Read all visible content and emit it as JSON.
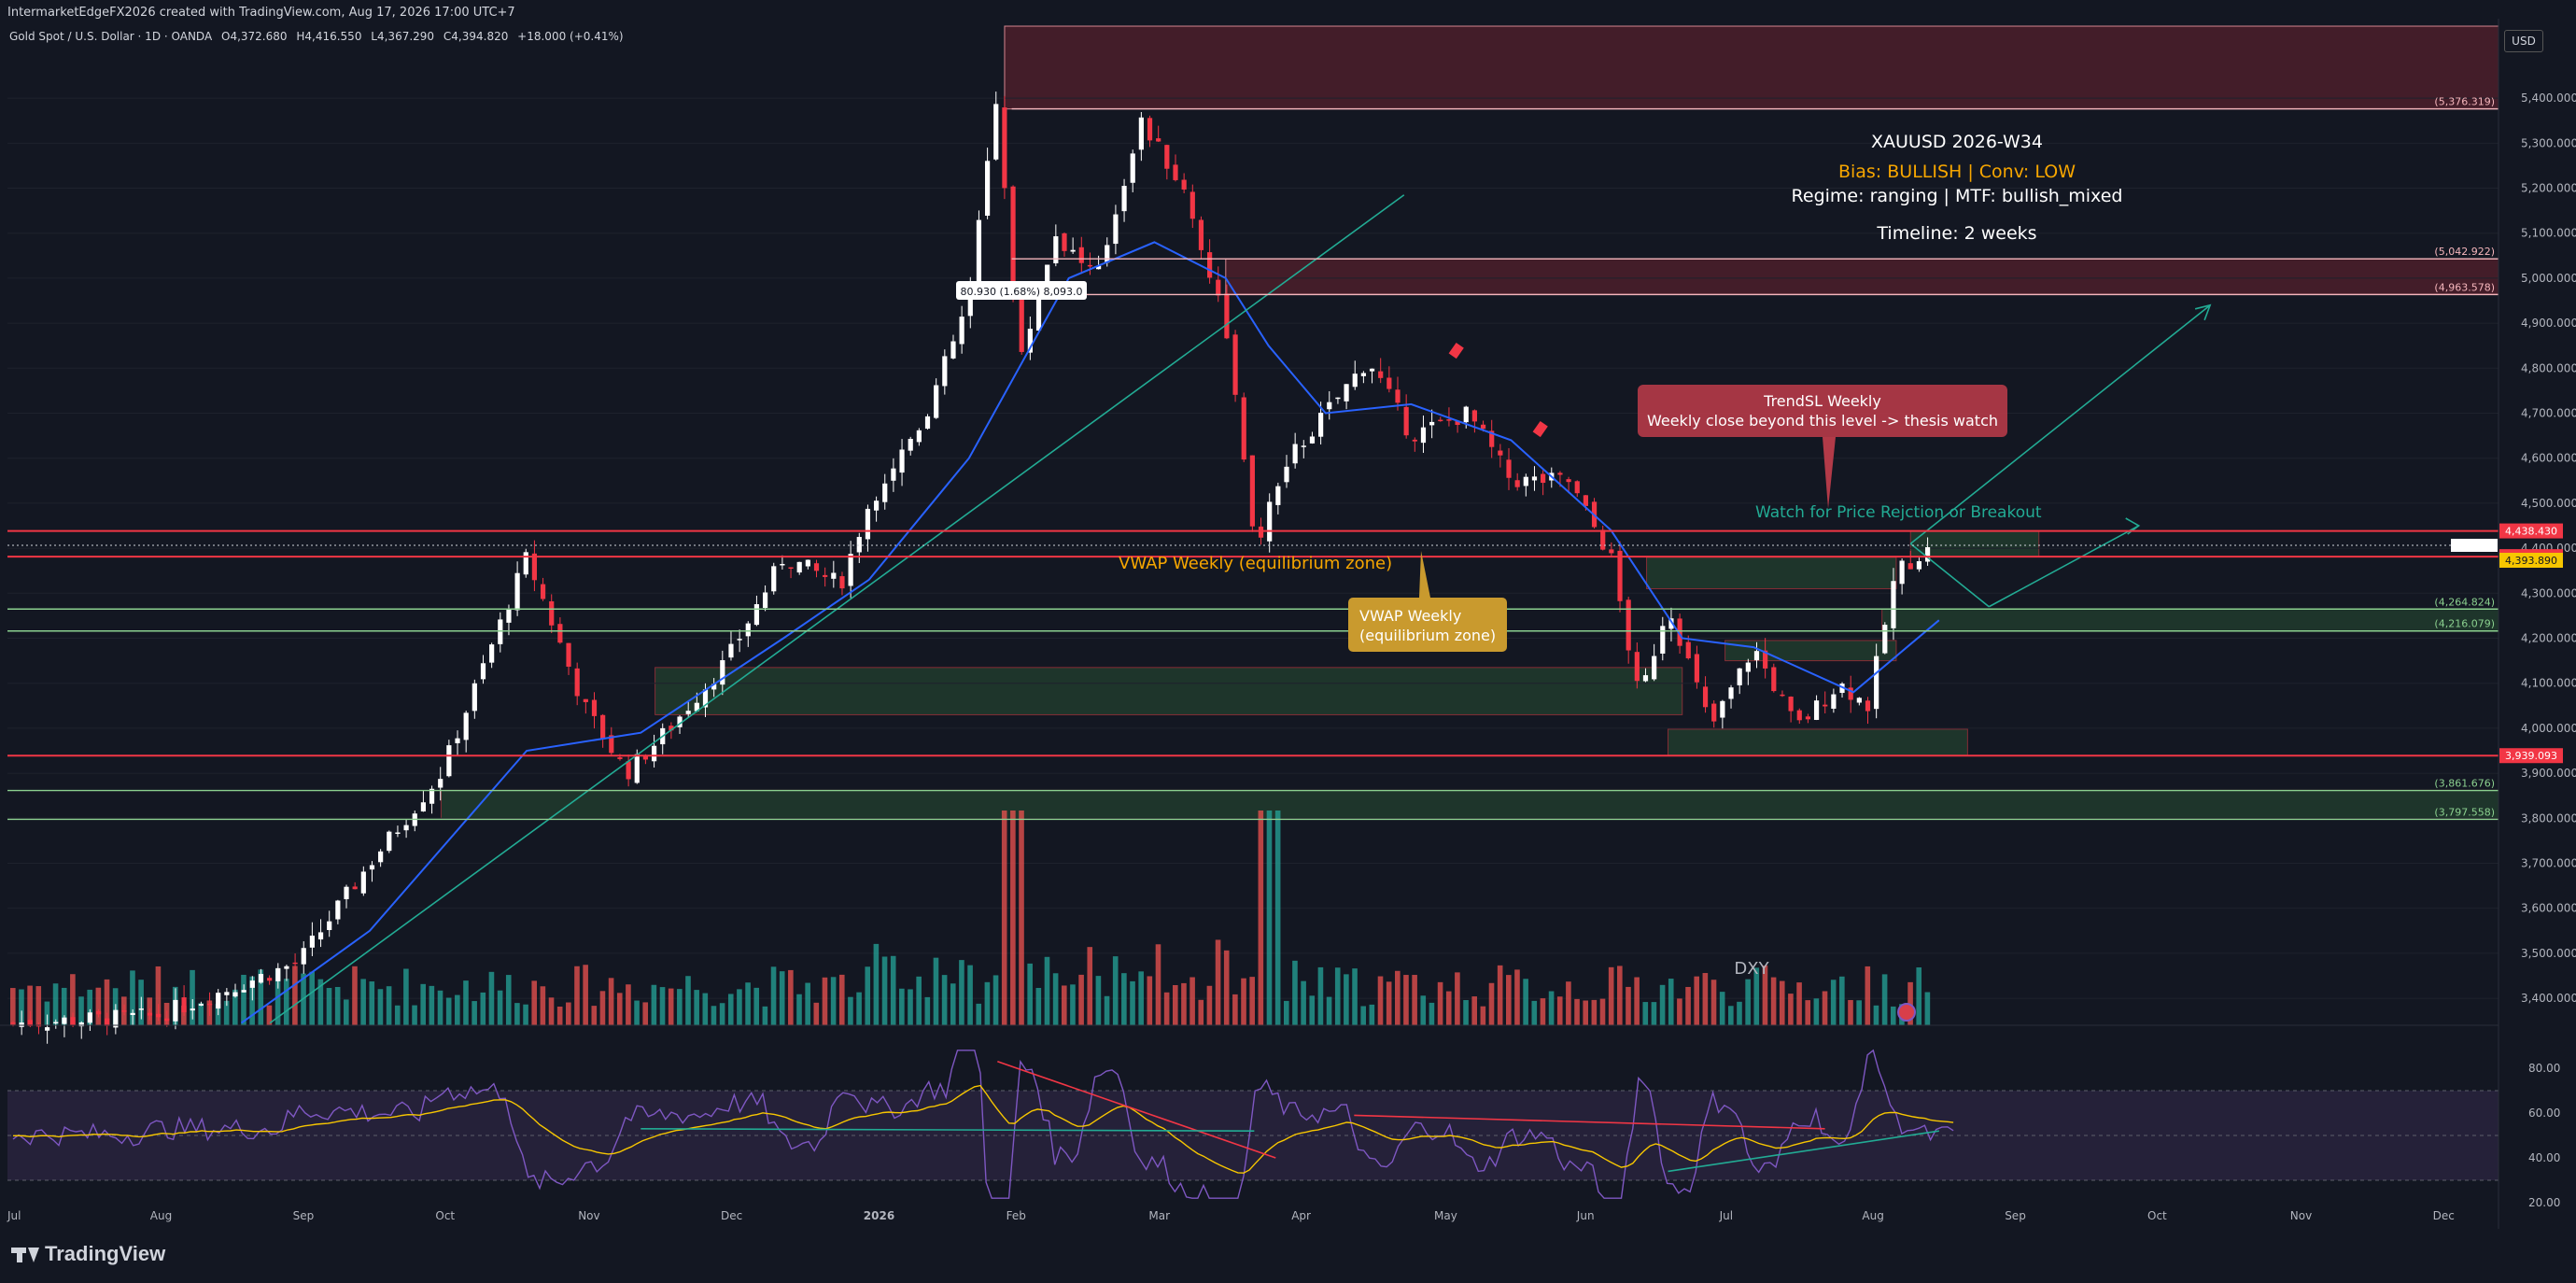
{
  "header": {
    "credit": "IntermarketEdgeFX2026 created with TradingView.com, Aug 17, 2026 17:00 UTC+7",
    "symbol": "Gold Spot / U.S. Dollar · 1D · OANDA",
    "ohlc_o": "O4,372.680",
    "ohlc_h": "H4,416.550",
    "ohlc_l": "L4,367.290",
    "ohlc_c": "C4,394.820",
    "change": "+18.000 (+0.41%)",
    "currency": "USD"
  },
  "footer": {
    "logo": "TradingView"
  },
  "colors": {
    "bg": "#131722",
    "up": "#ffffff",
    "down": "#f23645",
    "vol_up": "#26a69a",
    "vol_down": "#ef5350",
    "red_line": "#f23645",
    "teal": "#22ab94",
    "blue": "#2962ff",
    "orange": "#f7a600",
    "rsi_fill": "#2a2440"
  },
  "chart_data": {
    "type": "line",
    "title": "XAUUSD 2026-W34",
    "xlabel": "",
    "ylabel": "",
    "ylim": [
      3340,
      5560
    ],
    "x_ticks": [
      "Jul",
      "Aug",
      "Sep",
      "Oct",
      "Nov",
      "Dec",
      "2026",
      "Feb",
      "Mar",
      "Apr",
      "May",
      "Jun",
      "Jul",
      "Aug",
      "Sep",
      "Oct",
      "Nov",
      "Dec"
    ],
    "y_ticks": [
      "5,400.000",
      "5,300.000",
      "5,200.000",
      "5,100.000",
      "5,000.000",
      "4,900.000",
      "4,800.000",
      "4,700.000",
      "4,600.000",
      "4,500.000",
      "4,400.000",
      "4,300.000",
      "4,200.000",
      "4,100.000",
      "4,000.000",
      "3,900.000",
      "3,800.000",
      "3,700.000",
      "3,600.000",
      "3,500.000",
      "3,400.000"
    ],
    "rsi_ticks": [
      "80.00",
      "60.00",
      "40.00",
      "20.00"
    ],
    "price_path": [
      {
        "m": 0,
        "v": 3345
      },
      {
        "m": 1.0,
        "v": 3360
      },
      {
        "m": 2.0,
        "v": 3480
      },
      {
        "m": 2.5,
        "v": 3700
      },
      {
        "m": 3.0,
        "v": 3900
      },
      {
        "m": 3.6,
        "v": 4380
      },
      {
        "m": 4.0,
        "v": 4050
      },
      {
        "m": 4.3,
        "v": 3900
      },
      {
        "m": 4.6,
        "v": 4000
      },
      {
        "m": 5.0,
        "v": 4150
      },
      {
        "m": 5.4,
        "v": 4380
      },
      {
        "m": 5.8,
        "v": 4320
      },
      {
        "m": 6.0,
        "v": 4500
      },
      {
        "m": 6.4,
        "v": 4700
      },
      {
        "m": 6.7,
        "v": 4950
      },
      {
        "m": 6.9,
        "v": 5420
      },
      {
        "m": 7.05,
        "v": 4800
      },
      {
        "m": 7.3,
        "v": 5100
      },
      {
        "m": 7.6,
        "v": 5000
      },
      {
        "m": 7.9,
        "v": 5350
      },
      {
        "m": 8.2,
        "v": 5200
      },
      {
        "m": 8.5,
        "v": 4900
      },
      {
        "m": 8.7,
        "v": 4400
      },
      {
        "m": 8.95,
        "v": 4600
      },
      {
        "m": 9.2,
        "v": 4700
      },
      {
        "m": 9.5,
        "v": 4820
      },
      {
        "m": 9.8,
        "v": 4650
      },
      {
        "m": 10.2,
        "v": 4700
      },
      {
        "m": 10.5,
        "v": 4550
      },
      {
        "m": 10.9,
        "v": 4550
      },
      {
        "m": 11.2,
        "v": 4380
      },
      {
        "m": 11.4,
        "v": 4060
      },
      {
        "m": 11.6,
        "v": 4280
      },
      {
        "m": 11.9,
        "v": 4000
      },
      {
        "m": 12.2,
        "v": 4180
      },
      {
        "m": 12.5,
        "v": 4000
      },
      {
        "m": 12.8,
        "v": 4100
      },
      {
        "m": 13.0,
        "v": 4050
      },
      {
        "m": 13.2,
        "v": 4350
      },
      {
        "m": 13.4,
        "v": 4394
      }
    ],
    "moving_averages": [
      {
        "color": "blue",
        "points": [
          {
            "m": 1.6,
            "v": 3345
          },
          {
            "m": 2.5,
            "v": 3550
          },
          {
            "m": 3.6,
            "v": 3950
          },
          {
            "m": 4.4,
            "v": 3990
          },
          {
            "m": 5.4,
            "v": 4200
          },
          {
            "m": 6.0,
            "v": 4330
          },
          {
            "m": 6.7,
            "v": 4600
          },
          {
            "m": 7.4,
            "v": 5000
          },
          {
            "m": 8.0,
            "v": 5080
          },
          {
            "m": 8.5,
            "v": 5000
          },
          {
            "m": 8.8,
            "v": 4850
          },
          {
            "m": 9.2,
            "v": 4700
          },
          {
            "m": 9.8,
            "v": 4720
          },
          {
            "m": 10.5,
            "v": 4640
          },
          {
            "m": 11.2,
            "v": 4440
          },
          {
            "m": 11.7,
            "v": 4200
          },
          {
            "m": 12.2,
            "v": 4180
          },
          {
            "m": 12.9,
            "v": 4080
          },
          {
            "m": 13.5,
            "v": 4240
          }
        ]
      },
      {
        "color": "red",
        "points": [
          {
            "m": 2.0,
            "v": 3345
          },
          {
            "m": 3.0,
            "v": 3600
          },
          {
            "m": 3.7,
            "v": 3800
          },
          {
            "m": 4.5,
            "v": 3880
          },
          {
            "m": 5.4,
            "v": 4000
          },
          {
            "m": 6.2,
            "v": 4200
          },
          {
            "m": 6.9,
            "v": 4330
          },
          {
            "m": 7.3,
            "v": 4500
          },
          {
            "m": 8.0,
            "v": 4650
          },
          {
            "m": 8.6,
            "v": 4780
          },
          {
            "m": 9.1,
            "v": 4720
          },
          {
            "m": 9.8,
            "v": 4700
          },
          {
            "m": 10.5,
            "v": 4660
          },
          {
            "m": 11.0,
            "v": 4600
          },
          {
            "m": 11.6,
            "v": 4450
          },
          {
            "m": 12.3,
            "v": 4330
          },
          {
            "m": 13.0,
            "v": 4260
          },
          {
            "m": 13.5,
            "v": 4270
          }
        ]
      }
    ],
    "trendlines": [
      {
        "color": "teal",
        "from": {
          "m": 1.8,
          "v": 3345
        },
        "to": {
          "m": 9.75,
          "v": 5185
        }
      },
      {
        "color": "red",
        "from": {
          "m": 7.0,
          "v": 4800
        },
        "to": {
          "m": 7.9,
          "v": 5430
        }
      },
      {
        "color": "red",
        "from": {
          "m": 7.9,
          "v": 5430
        },
        "to": {
          "m": 13.2,
          "v": 4380
        }
      },
      {
        "color": "teal",
        "from": {
          "m": 13.3,
          "v": 4410
        },
        "to": {
          "m": 15.4,
          "v": 4940
        }
      },
      {
        "color": "teal",
        "from": {
          "m": 13.3,
          "v": 4410
        },
        "to": {
          "m": 13.85,
          "v": 4270
        }
      },
      {
        "color": "teal",
        "from": {
          "m": 13.85,
          "v": 4270
        },
        "to": {
          "m": 14.9,
          "v": 4450
        }
      }
    ],
    "horizontal_lines": [
      {
        "v": 5376.319,
        "label": "(5,376.319)"
      },
      {
        "v": 5042.922,
        "label": "(5,042.922)"
      },
      {
        "v": 4963.578,
        "label": "(4,963.578)"
      },
      {
        "v": 4438.43,
        "label": "4,438.430",
        "solid_tag": true
      },
      {
        "v": 4381.32,
        "label": "4,381.320",
        "solid_tag": true
      },
      {
        "v": 4264.824,
        "label": "(4,264.824)",
        "green": true
      },
      {
        "v": 4216.079,
        "label": "(4,216.079)",
        "green": true
      },
      {
        "v": 3939.093,
        "label": "3,939.093",
        "solid_tag": true
      },
      {
        "v": 3861.676,
        "label": "(3,861.676)",
        "green": true
      },
      {
        "v": 3797.558,
        "label": "(3,797.558)",
        "green": true
      }
    ],
    "zones": [
      {
        "type": "supply",
        "from_m": 6.95,
        "to_m": 17.7,
        "v1": 5560,
        "v2": 5376
      },
      {
        "type": "supply",
        "from_m": 8.5,
        "to_m": 17.7,
        "v1": 5043,
        "v2": 4964
      },
      {
        "type": "demand",
        "from_m": 11.45,
        "to_m": 13.2,
        "v1": 4380,
        "v2": 4310
      },
      {
        "type": "demand",
        "from_m": 4.5,
        "to_m": 11.7,
        "v1": 4135,
        "v2": 4030
      },
      {
        "type": "demand",
        "from_m": 11.6,
        "to_m": 13.7,
        "v1": 3998,
        "v2": 3939
      },
      {
        "type": "demand",
        "from_m": 12.0,
        "to_m": 13.2,
        "v1": 4195,
        "v2": 4150
      },
      {
        "type": "demand",
        "from_m": 13.1,
        "to_m": 17.7,
        "v1": 4265,
        "v2": 4216
      },
      {
        "type": "demand",
        "from_m": 3.0,
        "to_m": 17.7,
        "v1": 3862,
        "v2": 3798
      },
      {
        "type": "demand",
        "from_m": 13.3,
        "to_m": 14.2,
        "v1": 4438,
        "v2": 4381
      }
    ],
    "last_price": "4,393.890",
    "annotations": {
      "title": "XAUUSD 2026-W34",
      "bias": "Bias: BULLISH | Conv: LOW",
      "regime": "Regime: ranging | MTF: bullish_mixed",
      "timeline": "Timeline: 2 weeks",
      "trendsl_title": "TrendSL Weekly",
      "trendsl_sub": "Weekly close beyond this level -> thesis watch",
      "watch": "Watch for Price Rejction or Breakout",
      "vwap_line": "VWAP Weekly (equilibrium zone)",
      "vwap_box_1": "VWAP Weekly",
      "vwap_box_2": "(equilibrium zone)",
      "measure": "80.930 (1.68%) 8,093.0",
      "dxy": "DXY"
    },
    "volume": {
      "max": 100
    },
    "rsi": {
      "upper": 70,
      "lower": 30,
      "ylim": [
        15,
        90
      ]
    }
  }
}
